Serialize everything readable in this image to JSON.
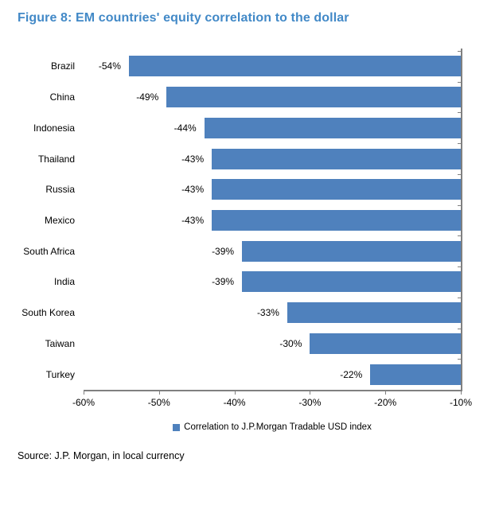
{
  "figure": {
    "title": "Figure 8: EM countries' equity correlation to the dollar",
    "source": "Source: J.P. Morgan, in local currency"
  },
  "chart_data": {
    "type": "bar",
    "orientation": "horizontal",
    "title": "Figure 8: EM countries' equity correlation to the dollar",
    "categories": [
      "Brazil",
      "China",
      "Indonesia",
      "Thailand",
      "Russia",
      "Mexico",
      "South Africa",
      "India",
      "South Korea",
      "Taiwan",
      "Turkey"
    ],
    "values": [
      -54,
      -49,
      -44,
      -43,
      -43,
      -43,
      -39,
      -39,
      -33,
      -30,
      -22
    ],
    "value_labels": [
      "-54%",
      "-49%",
      "-44%",
      "-43%",
      "-43%",
      "-43%",
      "-39%",
      "-39%",
      "-33%",
      "-30%",
      "-22%"
    ],
    "xlim": [
      -60,
      -10
    ],
    "x_ticks": [
      "-60%",
      "-50%",
      "-40%",
      "-30%",
      "-20%",
      "-10%"
    ],
    "bar_anchor": "right-edge-at--10%",
    "grid": false,
    "legend_position": "bottom-center",
    "legend": [
      {
        "label": "Correlation to J.P.Morgan Tradable USD index",
        "color": "#4F81BD"
      }
    ],
    "bar_color": "#4F81BD"
  },
  "colors": {
    "title": "#4289C7",
    "bar": "#4F81BD",
    "axis": "#808080",
    "text": "#000000",
    "background": "#FFFFFF"
  }
}
